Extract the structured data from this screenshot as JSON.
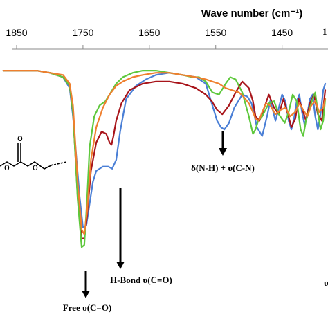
{
  "chart_data": {
    "type": "line",
    "xlabel": "Wave number (cm⁻¹)",
    "x_ticks": [
      1850,
      1750,
      1650,
      1550,
      1450
    ],
    "x_tick_labels": [
      "1850",
      "1750",
      "1650",
      "1550",
      "1450"
    ],
    "xlim": [
      1850,
      1385
    ],
    "x_reversed": true,
    "ylim": [
      0,
      1
    ],
    "y_axis_shown": false,
    "grid": false,
    "series": [
      {
        "color": "#4a7fd6",
        "x": [
          1870,
          1820,
          1800,
          1780,
          1770,
          1765,
          1755,
          1750,
          1745,
          1740,
          1735,
          1730,
          1720,
          1712,
          1706,
          1700,
          1694,
          1685,
          1670,
          1655,
          1640,
          1620,
          1600,
          1580,
          1565,
          1556,
          1548,
          1542,
          1537,
          1530,
          1522,
          1510,
          1502,
          1496,
          1492,
          1488,
          1480,
          1472,
          1468,
          1464,
          1460,
          1455,
          1450,
          1445,
          1440,
          1436,
          1432,
          1428,
          1424,
          1420,
          1416,
          1412,
          1408,
          1404,
          1400,
          1396,
          1392,
          1388,
          1385
        ],
        "y": [
          0.93,
          0.93,
          0.92,
          0.9,
          0.85,
          0.72,
          0.35,
          0.21,
          0.22,
          0.32,
          0.42,
          0.47,
          0.49,
          0.49,
          0.48,
          0.52,
          0.65,
          0.8,
          0.86,
          0.89,
          0.91,
          0.92,
          0.91,
          0.9,
          0.87,
          0.78,
          0.7,
          0.67,
          0.66,
          0.69,
          0.76,
          0.82,
          0.81,
          0.78,
          0.73,
          0.67,
          0.63,
          0.73,
          0.79,
          0.75,
          0.7,
          0.76,
          0.82,
          0.79,
          0.7,
          0.66,
          0.71,
          0.79,
          0.82,
          0.74,
          0.68,
          0.73,
          0.8,
          0.82,
          0.72,
          0.66,
          0.73,
          0.84,
          0.87
        ]
      },
      {
        "color": "#a8141a",
        "x": [
          1870,
          1820,
          1800,
          1780,
          1770,
          1765,
          1758,
          1752,
          1748,
          1744,
          1738,
          1730,
          1722,
          1715,
          1710,
          1707,
          1704,
          1700,
          1692,
          1680,
          1660,
          1640,
          1620,
          1600,
          1580,
          1565,
          1556,
          1548,
          1540,
          1530,
          1520,
          1510,
          1500,
          1494,
          1490,
          1484,
          1478,
          1470,
          1462,
          1455,
          1448,
          1442,
          1436,
          1430,
          1425,
          1420,
          1414,
          1408,
          1402,
          1396,
          1390,
          1385
        ],
        "y": [
          0.93,
          0.93,
          0.92,
          0.9,
          0.86,
          0.74,
          0.35,
          0.16,
          0.16,
          0.26,
          0.47,
          0.6,
          0.65,
          0.64,
          0.6,
          0.59,
          0.63,
          0.7,
          0.78,
          0.84,
          0.87,
          0.88,
          0.88,
          0.87,
          0.85,
          0.82,
          0.79,
          0.75,
          0.73,
          0.77,
          0.83,
          0.88,
          0.85,
          0.79,
          0.72,
          0.7,
          0.75,
          0.82,
          0.76,
          0.73,
          0.8,
          0.74,
          0.67,
          0.71,
          0.8,
          0.76,
          0.7,
          0.78,
          0.82,
          0.73,
          0.7,
          0.84
        ]
      },
      {
        "color": "#5ec83c",
        "x": [
          1870,
          1820,
          1800,
          1780,
          1770,
          1765,
          1758,
          1752,
          1748,
          1744,
          1740,
          1733,
          1725,
          1716,
          1708,
          1700,
          1690,
          1675,
          1660,
          1640,
          1620,
          1600,
          1585,
          1575,
          1565,
          1555,
          1545,
          1535,
          1528,
          1520,
          1510,
          1500,
          1494,
          1490,
          1486,
          1480,
          1470,
          1462,
          1455,
          1446,
          1440,
          1434,
          1428,
          1422,
          1418,
          1414,
          1408,
          1404,
          1400,
          1396,
          1392,
          1388,
          1385
        ],
        "y": [
          0.93,
          0.93,
          0.92,
          0.9,
          0.86,
          0.74,
          0.34,
          0.12,
          0.13,
          0.33,
          0.58,
          0.72,
          0.77,
          0.79,
          0.83,
          0.87,
          0.9,
          0.92,
          0.93,
          0.93,
          0.92,
          0.91,
          0.9,
          0.9,
          0.88,
          0.83,
          0.82,
          0.87,
          0.9,
          0.89,
          0.83,
          0.72,
          0.64,
          0.66,
          0.7,
          0.72,
          0.78,
          0.79,
          0.73,
          0.69,
          0.74,
          0.82,
          0.79,
          0.66,
          0.63,
          0.7,
          0.76,
          0.8,
          0.83,
          0.74,
          0.66,
          0.7,
          0.8
        ]
      },
      {
        "color": "#ef7f2e",
        "x": [
          1870,
          1820,
          1800,
          1780,
          1770,
          1765,
          1758,
          1752,
          1748,
          1744,
          1738,
          1730,
          1720,
          1710,
          1700,
          1690,
          1675,
          1660,
          1640,
          1620,
          1600,
          1580,
          1565,
          1555,
          1545,
          1535,
          1525,
          1515,
          1508,
          1500,
          1494,
          1490,
          1485,
          1480,
          1474,
          1468,
          1460,
          1452,
          1445,
          1438,
          1430,
          1424,
          1418,
          1412,
          1406,
          1400,
          1394,
          1388,
          1385
        ],
        "y": [
          0.93,
          0.93,
          0.92,
          0.91,
          0.87,
          0.77,
          0.42,
          0.2,
          0.18,
          0.28,
          0.52,
          0.67,
          0.76,
          0.82,
          0.86,
          0.88,
          0.9,
          0.91,
          0.92,
          0.92,
          0.91,
          0.9,
          0.89,
          0.88,
          0.87,
          0.85,
          0.84,
          0.83,
          0.81,
          0.78,
          0.74,
          0.71,
          0.7,
          0.74,
          0.78,
          0.77,
          0.73,
          0.75,
          0.76,
          0.72,
          0.74,
          0.78,
          0.75,
          0.72,
          0.77,
          0.79,
          0.74,
          0.76,
          0.8
        ]
      }
    ],
    "annotations": [
      {
        "text": "Free υ(C=O)",
        "x": 1745
      },
      {
        "text": "H-Bond υ(C=O)",
        "x": 1697
      },
      {
        "text": "δ(N-H) + υ(C-N)",
        "x": 1533
      }
    ],
    "edge_text": [
      "υ",
      "1"
    ]
  }
}
